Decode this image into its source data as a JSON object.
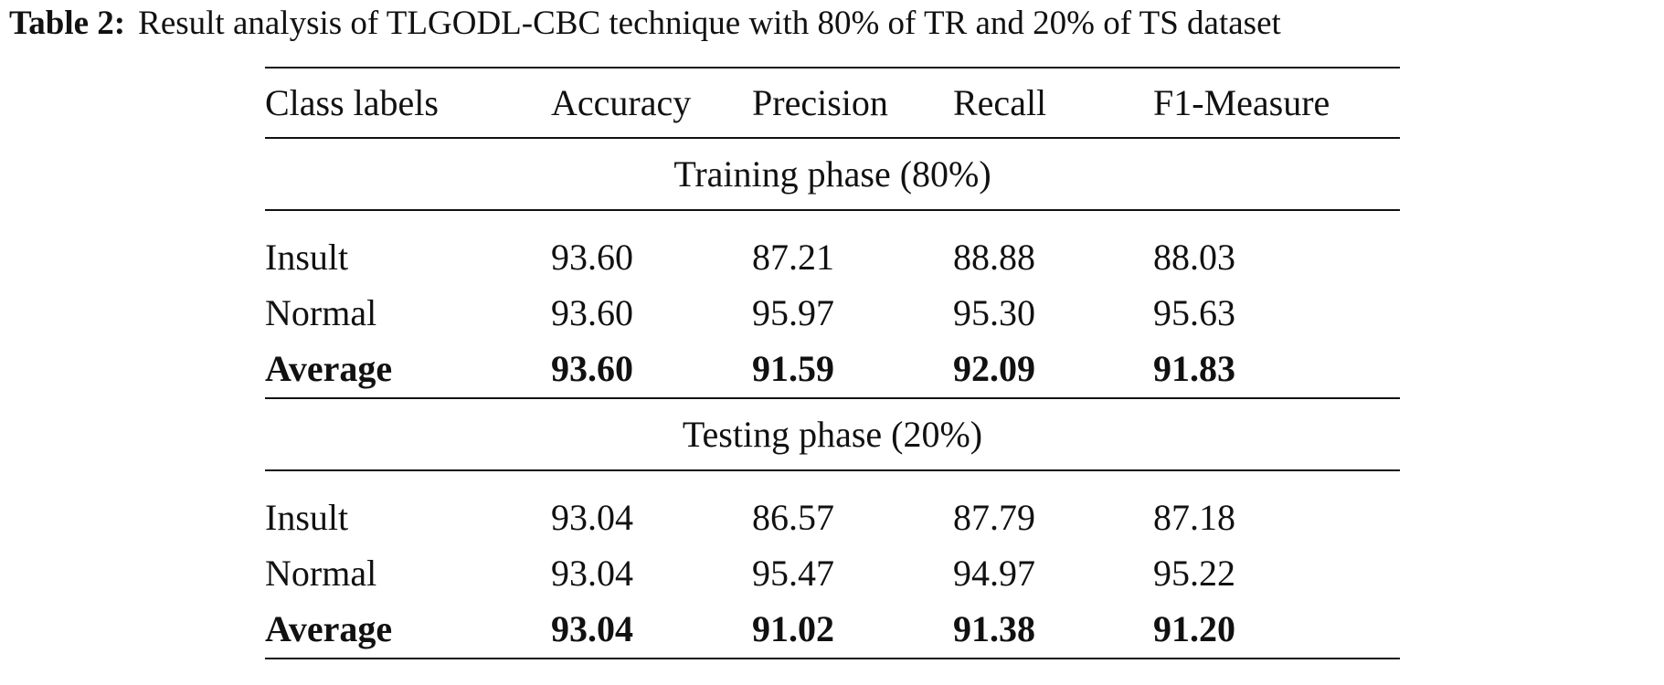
{
  "caption": {
    "label": "Table 2:",
    "text": "Result analysis of TLGODL-CBC technique with 80% of TR and 20% of TS dataset"
  },
  "table": {
    "headers": [
      "Class labels",
      "Accuracy",
      "Precision",
      "Recall",
      "F1-Measure"
    ],
    "sections": [
      {
        "title": "Training phase (80%)",
        "rows": [
          [
            "Insult",
            "93.60",
            "87.21",
            "88.88",
            "88.03"
          ],
          [
            "Normal",
            "93.60",
            "95.97",
            "95.30",
            "95.63"
          ],
          [
            "Average",
            "93.60",
            "91.59",
            "92.09",
            "91.83"
          ]
        ]
      },
      {
        "title": "Testing phase (20%)",
        "rows": [
          [
            "Insult",
            "93.04",
            "86.57",
            "87.79",
            "87.18"
          ],
          [
            "Normal",
            "93.04",
            "95.47",
            "94.97",
            "95.22"
          ],
          [
            "Average",
            "93.04",
            "91.02",
            "91.38",
            "91.20"
          ]
        ]
      }
    ]
  }
}
